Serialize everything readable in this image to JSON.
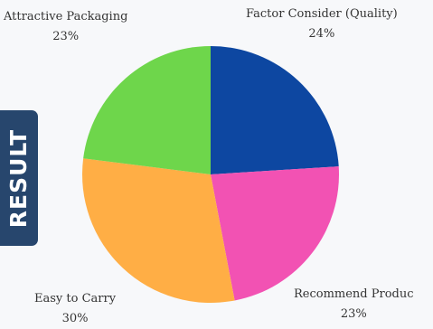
{
  "side_badge": {
    "label": "RESULT"
  },
  "chart_data": {
    "type": "pie",
    "title": "",
    "categories": [
      "Factor Consider (Quality)",
      "Recommend Product",
      "Easy to Carry",
      "Attractive Packaging"
    ],
    "values": [
      24,
      23,
      30,
      23
    ],
    "value_labels": [
      "24%",
      "23%",
      "30%",
      "23%"
    ],
    "label_text": [
      "Factor Consider (Quality)",
      "Recommend Produc",
      "Easy to Carry",
      "Attractive Packaging"
    ],
    "colors": [
      "#0d47a1",
      "#f252b3",
      "#ffae45",
      "#6ed64b"
    ],
    "legend": "none"
  }
}
